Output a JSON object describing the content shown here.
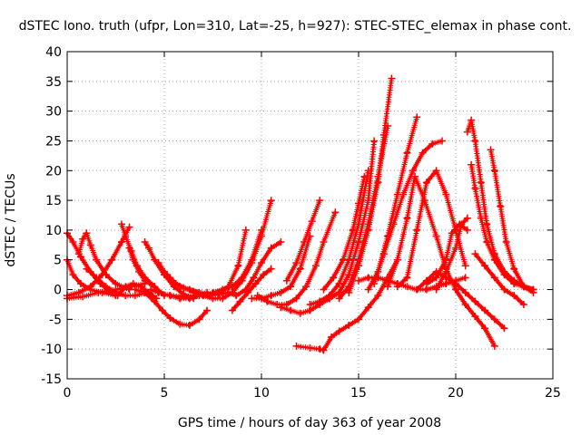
{
  "chart_data": {
    "type": "line",
    "title": "dSTEC Iono. truth (ufpr, Lon=310, Lat=-25, h=927): STEC-STEC_elemax in phase cont.",
    "xlabel": "GPS time / hours of day 363 of year 2008",
    "ylabel": "dSTEC  / TECUs",
    "xlim": [
      0,
      25
    ],
    "ylim": [
      -15,
      40
    ],
    "xticks": [
      0,
      5,
      10,
      15,
      20,
      25
    ],
    "yticks": [
      -15,
      -10,
      -5,
      0,
      5,
      10,
      15,
      20,
      25,
      30,
      35,
      40
    ],
    "grid": true,
    "series_color": "#ff0000",
    "marker": "plus",
    "series": [
      {
        "x": [
          0.0,
          0.3,
          0.7,
          1.2,
          1.7,
          2.3
        ],
        "y": [
          9.5,
          8.0,
          5.5,
          3.0,
          1.0,
          -0.5
        ]
      },
      {
        "x": [
          0.0,
          0.3,
          0.7,
          1.2,
          1.8,
          2.5
        ],
        "y": [
          5.0,
          2.5,
          1.0,
          0.0,
          -0.5,
          -1.0
        ]
      },
      {
        "x": [
          0.0,
          0.6,
          1.2,
          1.8,
          2.3,
          2.8,
          3.2
        ],
        "y": [
          -1.0,
          -0.5,
          0.5,
          2.5,
          5.0,
          8.0,
          10.5
        ]
      },
      {
        "x": [
          0.0,
          0.8,
          1.6,
          2.5,
          3.3,
          4.0
        ],
        "y": [
          -1.5,
          -1.2,
          -0.5,
          0.0,
          0.5,
          1.0
        ]
      },
      {
        "x": [
          0.6,
          0.8,
          1.0,
          1.2,
          1.5,
          2.0,
          2.5,
          3.2
        ],
        "y": [
          6.0,
          8.5,
          9.5,
          7.5,
          5.0,
          2.5,
          1.0,
          0.0
        ]
      },
      {
        "x": [
          1.0,
          1.5,
          2.0,
          2.5,
          3.0,
          3.5,
          4.2
        ],
        "y": [
          3.5,
          2.0,
          0.5,
          -0.5,
          -1.0,
          -1.0,
          -0.5
        ]
      },
      {
        "x": [
          2.6,
          3.0,
          3.4,
          3.8,
          4.2,
          4.6
        ],
        "y": [
          -1.0,
          0.5,
          1.0,
          0.5,
          -0.5,
          -1.5
        ]
      },
      {
        "x": [
          2.8,
          3.0,
          3.3,
          3.6,
          4.0,
          4.5,
          5.0
        ],
        "y": [
          11.0,
          9.0,
          6.5,
          4.0,
          2.0,
          0.5,
          -1.0
        ]
      },
      {
        "x": [
          3.2,
          3.4,
          3.7,
          4.0,
          4.5
        ],
        "y": [
          7.0,
          5.0,
          3.0,
          1.5,
          0.5
        ]
      },
      {
        "x": [
          4.0,
          4.2,
          4.5,
          5.0,
          5.5,
          6.0,
          6.5
        ],
        "y": [
          8.0,
          7.0,
          5.0,
          2.5,
          0.5,
          -0.8,
          -1.5
        ]
      },
      {
        "x": [
          4.3,
          4.7,
          5.3,
          6.0,
          6.6,
          7.2
        ],
        "y": [
          0.0,
          -0.5,
          -1.0,
          -1.2,
          -1.0,
          -0.5
        ]
      },
      {
        "x": [
          4.7,
          5.0,
          5.3,
          5.6,
          6.0,
          6.5,
          7.2
        ],
        "y": [
          4.5,
          3.0,
          2.0,
          1.0,
          0.3,
          -0.3,
          -0.8
        ]
      },
      {
        "x": [
          3.5,
          4.0,
          4.5,
          4.9,
          5.3,
          5.8,
          6.3,
          6.8,
          7.2
        ],
        "y": [
          0.0,
          -0.5,
          -2.0,
          -3.5,
          -4.8,
          -5.8,
          -6.0,
          -5.0,
          -3.5
        ]
      },
      {
        "x": [
          5.3,
          5.8,
          6.3,
          6.8,
          7.3,
          7.8,
          8.3
        ],
        "y": [
          -1.0,
          -1.5,
          -1.5,
          -1.0,
          -1.0,
          -0.8,
          -0.5
        ]
      },
      {
        "x": [
          5.8,
          6.3,
          6.8,
          7.3,
          7.8,
          8.3,
          8.8,
          9.2
        ],
        "y": [
          0.5,
          0.0,
          -0.5,
          -1.0,
          -0.5,
          0.5,
          4.0,
          10.0
        ]
      },
      {
        "x": [
          6.5,
          7.0,
          7.5,
          8.0,
          8.5,
          9.0,
          9.5,
          10.0,
          10.5
        ],
        "y": [
          -0.5,
          -1.0,
          -1.5,
          -1.5,
          -0.5,
          1.5,
          4.5,
          9.0,
          15.0
        ]
      },
      {
        "x": [
          7.0,
          7.5,
          8.0,
          8.5,
          9.0,
          9.5,
          10.0
        ],
        "y": [
          -1.0,
          -0.5,
          0.0,
          0.5,
          2.0,
          5.0,
          10.0
        ]
      },
      {
        "x": [
          8.3,
          8.7,
          9.2,
          9.6,
          10.0,
          10.5,
          11.0
        ],
        "y": [
          -0.5,
          -1.0,
          0.0,
          2.0,
          4.5,
          7.0,
          8.0
        ]
      },
      {
        "x": [
          8.5,
          8.9,
          9.3,
          9.7,
          10.1,
          10.5
        ],
        "y": [
          -3.5,
          -2.0,
          -0.5,
          1.0,
          2.5,
          3.5
        ]
      },
      {
        "x": [
          9.5,
          10.0,
          10.5,
          11.0,
          11.5,
          12.0,
          12.5
        ],
        "y": [
          -1.5,
          -1.5,
          -1.0,
          -0.5,
          0.5,
          3.5,
          9.0
        ]
      },
      {
        "x": [
          9.8,
          10.3,
          10.8,
          11.3,
          11.8,
          12.3,
          12.8,
          13.2,
          13.8
        ],
        "y": [
          -1.0,
          -2.0,
          -2.5,
          -2.5,
          -1.5,
          0.5,
          4.0,
          8.0,
          13.0
        ]
      },
      {
        "x": [
          11.0,
          11.5,
          12.0,
          12.5,
          13.0,
          13.5,
          14.0
        ],
        "y": [
          -3.0,
          -3.5,
          -4.0,
          -3.5,
          -2.5,
          -1.5,
          -0.5
        ]
      },
      {
        "x": [
          11.3,
          11.8,
          12.2,
          12.6,
          13.0
        ],
        "y": [
          1.5,
          4.5,
          8.0,
          11.5,
          15.0
        ]
      },
      {
        "x": [
          11.8,
          12.5,
          13.0,
          13.2,
          13.6,
          14.0,
          14.5,
          15.0,
          15.5,
          16.0,
          16.5,
          17.0
        ],
        "y": [
          -9.5,
          -9.8,
          -10.0,
          -10.2,
          -8.0,
          -7.0,
          -6.0,
          -5.0,
          -3.0,
          -1.0,
          2.0,
          5.0
        ]
      },
      {
        "x": [
          12.5,
          13.0,
          13.5,
          14.0,
          14.5,
          15.0,
          15.5
        ],
        "y": [
          -2.5,
          -2.0,
          -1.0,
          1.0,
          5.0,
          11.0,
          20.0
        ]
      },
      {
        "x": [
          13.0,
          13.5,
          14.0,
          14.5,
          15.0,
          15.5,
          15.8
        ],
        "y": [
          -2.0,
          -1.5,
          -0.5,
          2.5,
          8.0,
          15.0,
          25.0
        ]
      },
      {
        "x": [
          13.2,
          13.7,
          14.2,
          14.7,
          15.0,
          15.3
        ],
        "y": [
          0.0,
          2.0,
          5.0,
          10.0,
          14.5,
          19.0
        ]
      },
      {
        "x": [
          14.0,
          14.5,
          15.0,
          15.5,
          16.0,
          16.5
        ],
        "y": [
          -1.5,
          0.5,
          5.0,
          11.0,
          19.0,
          27.5
        ]
      },
      {
        "x": [
          14.5,
          15.0,
          15.5,
          16.0,
          16.3,
          16.7
        ],
        "y": [
          -0.5,
          4.0,
          10.0,
          18.0,
          26.0,
          35.5
        ]
      },
      {
        "x": [
          15.0,
          15.5,
          16.0,
          16.5,
          17.0,
          17.5,
          18.0,
          18.5,
          19.0,
          19.5,
          20.0,
          20.5
        ],
        "y": [
          1.5,
          2.0,
          2.0,
          1.5,
          1.0,
          0.5,
          0.0,
          0.0,
          0.5,
          1.0,
          1.5,
          2.0
        ]
      },
      {
        "x": [
          15.8,
          16.3,
          16.8,
          17.3,
          17.8,
          18.3,
          18.8,
          19.3
        ],
        "y": [
          1.0,
          6.0,
          11.0,
          16.0,
          20.0,
          23.0,
          24.5,
          25.0
        ]
      },
      {
        "x": [
          15.5,
          16.0,
          16.5,
          17.0,
          17.5,
          18.0
        ],
        "y": [
          0.0,
          3.0,
          9.0,
          16.0,
          23.0,
          29.0
        ]
      },
      {
        "x": [
          16.5,
          17.0,
          17.5,
          17.9,
          18.4,
          19.0,
          19.5,
          20.0,
          20.5,
          21.0,
          21.5,
          22.0
        ],
        "y": [
          0.5,
          5.0,
          12.0,
          19.0,
          15.0,
          9.0,
          3.5,
          0.0,
          -2.5,
          -4.5,
          -6.5,
          -9.5
        ]
      },
      {
        "x": [
          17.0,
          17.5,
          18.0,
          18.5,
          19.0,
          19.5,
          20.0,
          20.5
        ],
        "y": [
          0.5,
          2.0,
          10.0,
          18.0,
          20.0,
          16.0,
          10.0,
          4.0
        ]
      },
      {
        "x": [
          18.0,
          18.5,
          19.0,
          19.5,
          20.0,
          20.5,
          21.0,
          21.5,
          22.0,
          22.5
        ],
        "y": [
          0.0,
          1.5,
          3.0,
          2.0,
          1.0,
          -0.5,
          -2.0,
          -3.5,
          -5.0,
          -6.5
        ]
      },
      {
        "x": [
          18.5,
          19.0,
          19.5,
          19.8,
          20.2,
          20.6
        ],
        "y": [
          1.0,
          2.0,
          5.0,
          9.5,
          11.0,
          10.0
        ]
      },
      {
        "x": [
          19.0,
          19.5,
          20.0,
          20.3,
          20.6
        ],
        "y": [
          0.0,
          3.0,
          7.0,
          11.0,
          12.0
        ]
      },
      {
        "x": [
          20.6,
          20.8,
          21.0,
          21.3,
          21.6,
          22.0,
          22.5,
          23.0,
          23.5,
          24.0
        ],
        "y": [
          26.5,
          28.5,
          25.0,
          18.0,
          11.0,
          6.0,
          3.0,
          1.5,
          0.5,
          0.0
        ]
      },
      {
        "x": [
          20.8,
          21.0,
          21.3,
          21.6,
          22.0,
          22.5,
          23.0,
          23.5,
          24.0
        ],
        "y": [
          21.0,
          17.0,
          12.0,
          8.0,
          5.0,
          2.5,
          1.0,
          0.5,
          0.0
        ]
      },
      {
        "x": [
          21.8,
          22.0,
          22.3,
          22.6,
          23.0,
          23.5,
          24.0
        ],
        "y": [
          23.5,
          20.0,
          14.0,
          8.0,
          3.5,
          0.5,
          -0.5
        ]
      },
      {
        "x": [
          21.0,
          21.5,
          22.0,
          22.5,
          23.0,
          23.5
        ],
        "y": [
          6.0,
          4.0,
          2.0,
          0.0,
          -1.0,
          -2.5
        ]
      }
    ]
  }
}
